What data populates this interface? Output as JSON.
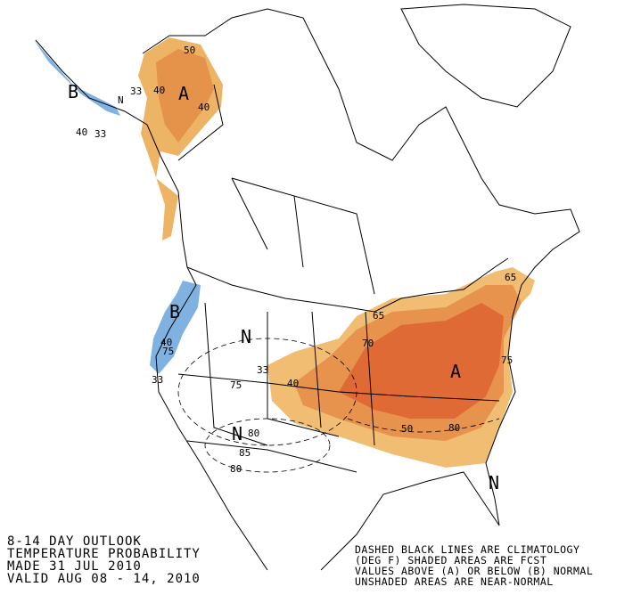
{
  "title_block": {
    "lines": [
      "8-14 DAY OUTLOOK",
      "TEMPERATURE PROBABILITY",
      "MADE  31 JUL 2010",
      "VALID  AUG 08 - 14, 2010"
    ]
  },
  "legend_note": {
    "lines": [
      "DASHED BLACK LINES ARE CLIMATOLOGY",
      "(DEG F) SHADED AREAS ARE FCST",
      "VALUES ABOVE (A) OR BELOW (B) NORMAL",
      "UNSHADED AREAS ARE NEAR-NORMAL"
    ]
  },
  "labels": [
    {
      "text": "B"
    },
    {
      "text": "N"
    },
    {
      "text": "33"
    },
    {
      "text": "40"
    },
    {
      "text": "A"
    },
    {
      "text": "40"
    },
    {
      "text": "40"
    },
    {
      "text": "33"
    },
    {
      "text": "50"
    },
    {
      "text": "B"
    },
    {
      "text": "40"
    },
    {
      "text": "N"
    },
    {
      "text": "33"
    },
    {
      "text": "75"
    },
    {
      "text": "40"
    },
    {
      "text": "N"
    },
    {
      "text": "80"
    },
    {
      "text": "85"
    },
    {
      "text": "80"
    },
    {
      "text": "70"
    },
    {
      "text": "65"
    },
    {
      "text": "A"
    },
    {
      "text": "50"
    },
    {
      "text": "80"
    },
    {
      "text": "75"
    },
    {
      "text": "65"
    },
    {
      "text": "N"
    },
    {
      "text": "33"
    },
    {
      "text": "75"
    }
  ]
}
